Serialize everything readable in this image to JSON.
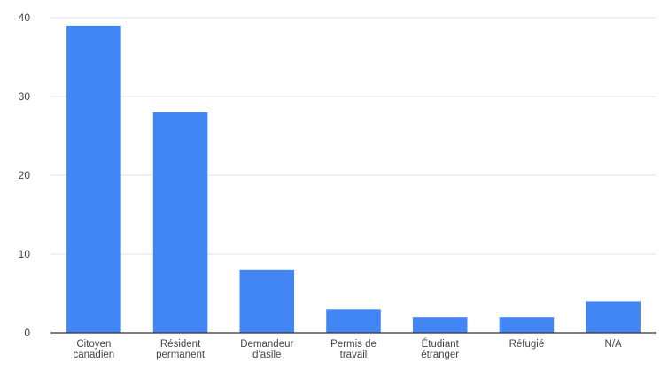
{
  "chart_data": {
    "type": "bar",
    "categories": [
      [
        "Citoyen",
        "canadien"
      ],
      [
        "Résident",
        "permanent"
      ],
      [
        "Demandeur",
        "d'asile"
      ],
      [
        "Permis de",
        "travail"
      ],
      [
        "Étudiant",
        "étranger"
      ],
      [
        "Réfugié"
      ],
      [
        "N/A"
      ]
    ],
    "values": [
      39,
      28,
      8,
      3,
      2,
      2,
      4
    ],
    "ylim": [
      0,
      40
    ],
    "yticks": [
      0,
      10,
      20,
      30,
      40
    ],
    "grid": true,
    "bar_color": "#4285f4",
    "grid_color": "#e0e0e0",
    "axis_color": "#333333",
    "title": "",
    "xlabel": "",
    "ylabel": ""
  }
}
